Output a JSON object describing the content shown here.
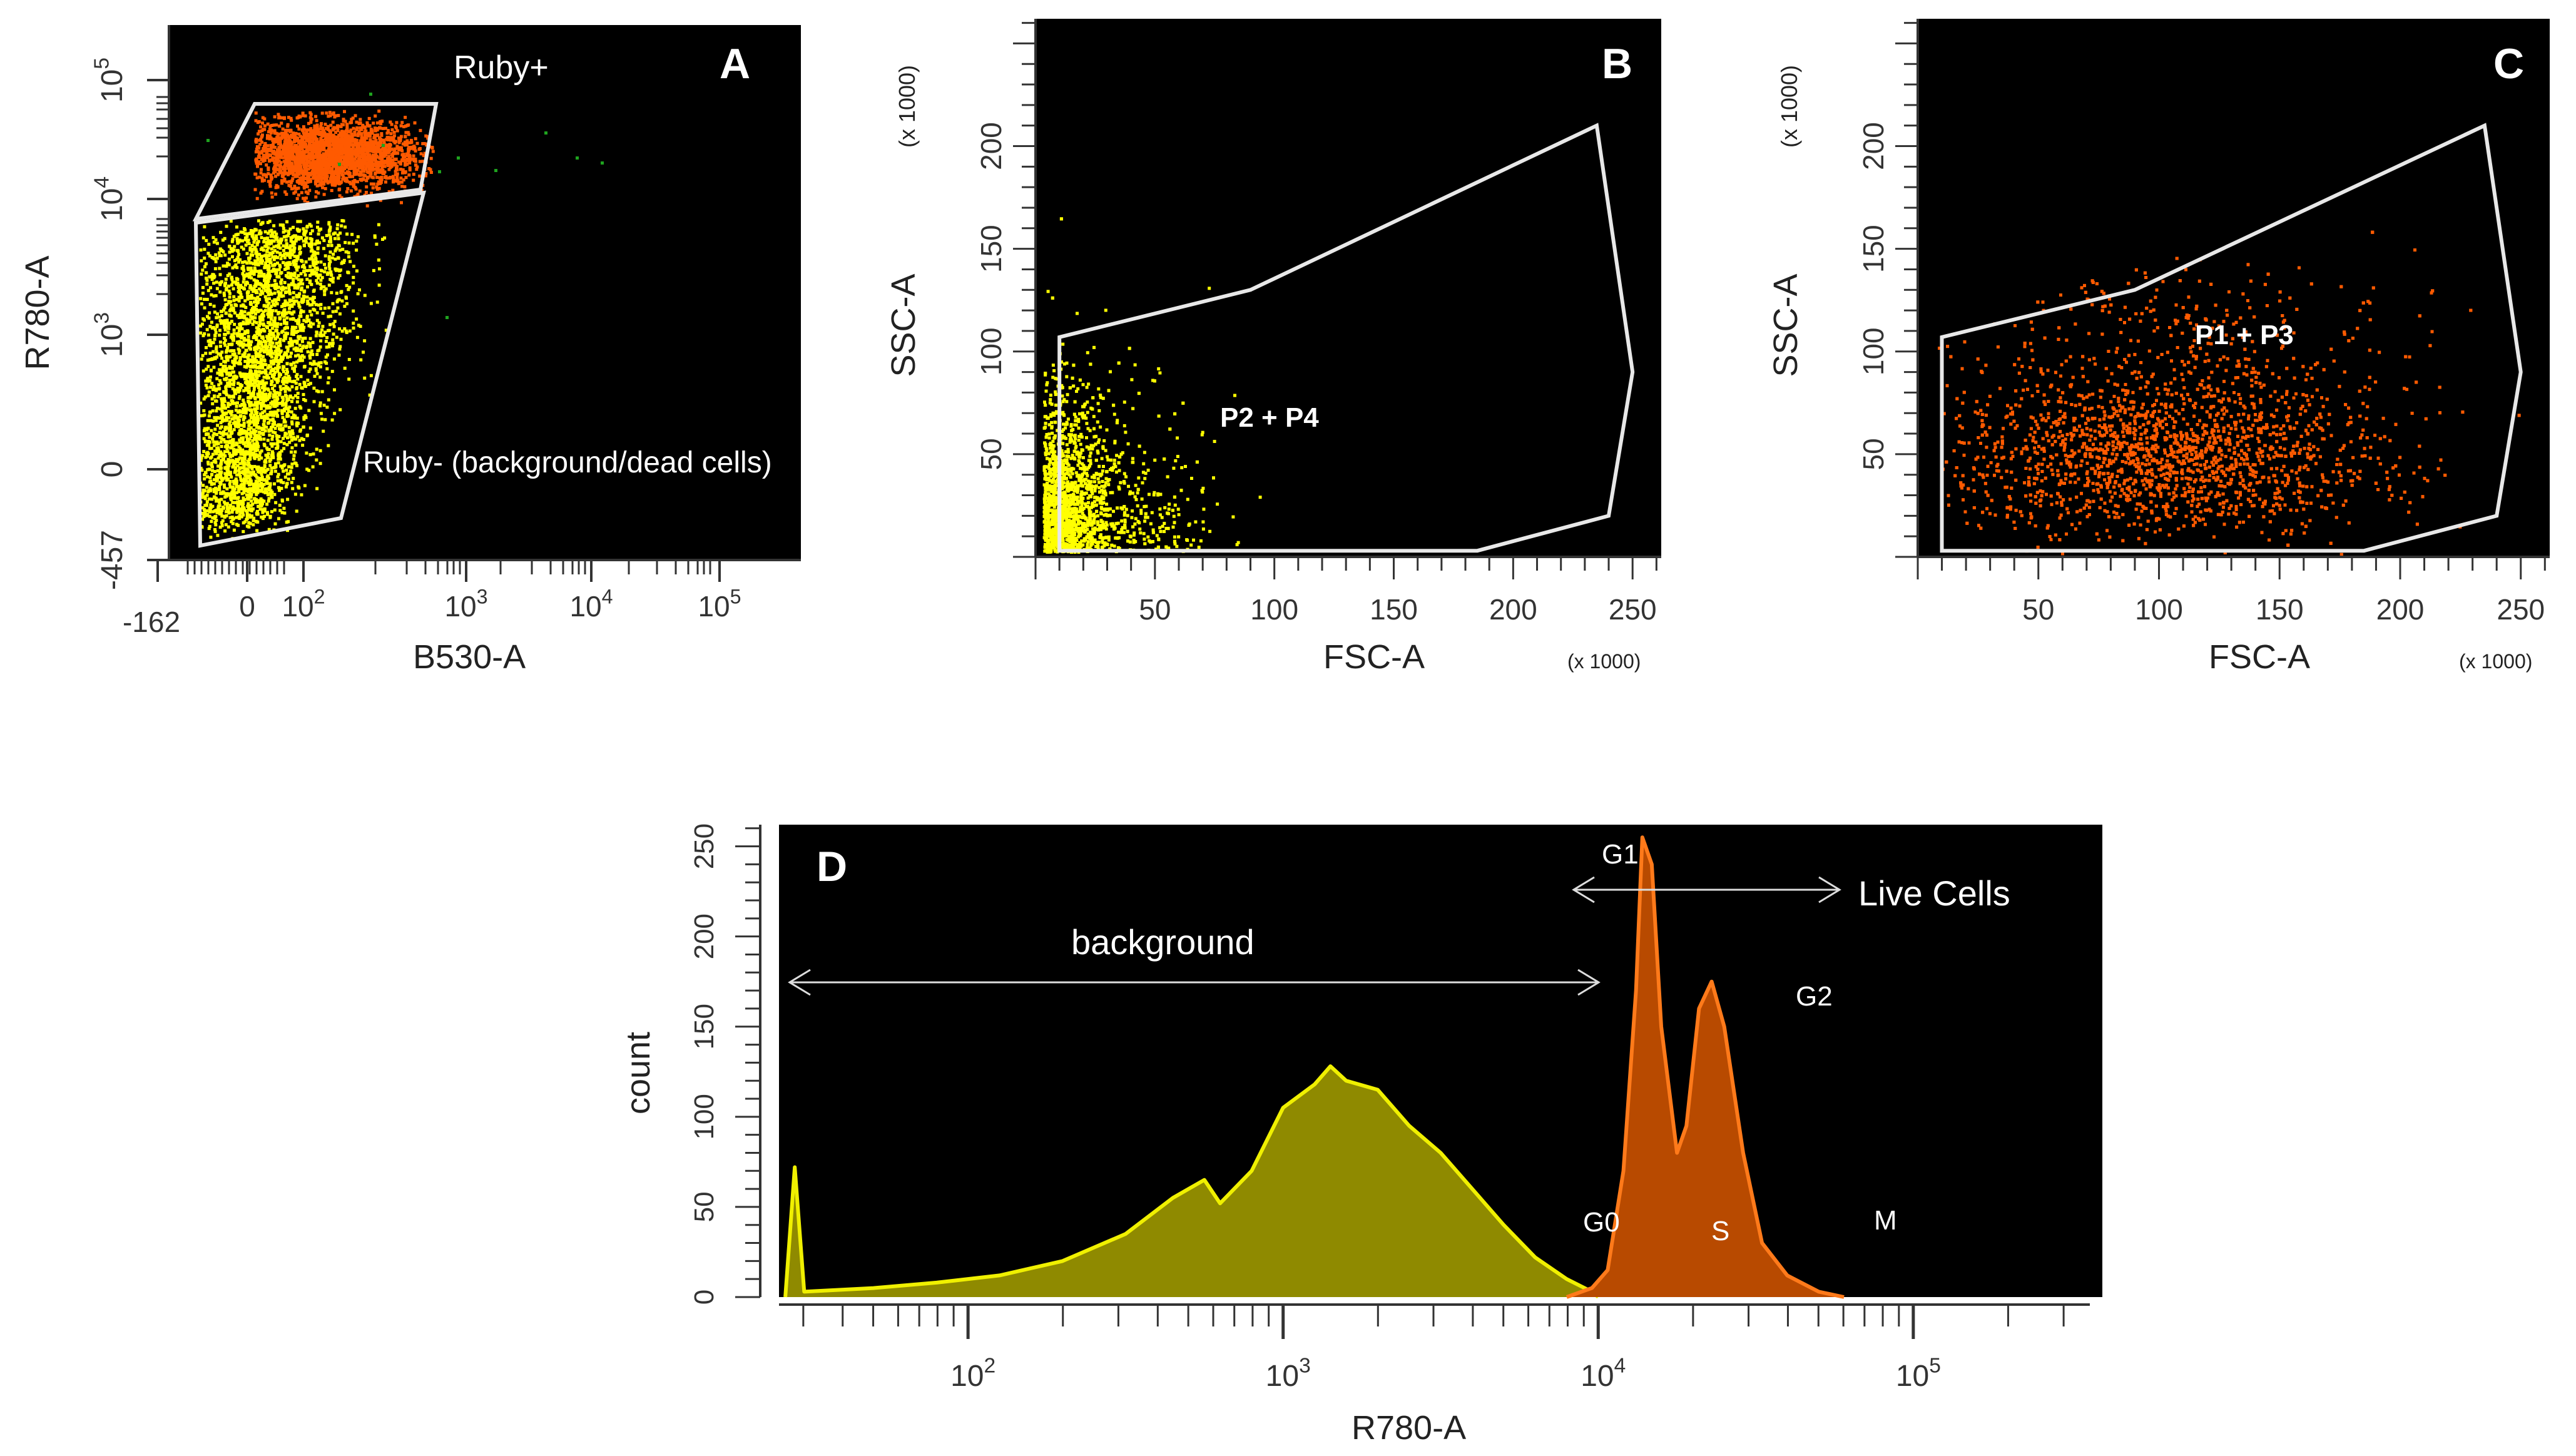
{
  "colors": {
    "plot_bg": "#000000",
    "gate": "#e8e8e8",
    "ruby_pos": "#ff5a00",
    "ruby_neg": "#ffff00",
    "stray": "#1fa31f",
    "hist_background_fill": "#8f8a00",
    "hist_background_line": "#f0f000",
    "hist_live_fill": "#b84a00",
    "hist_live_line": "#ff7a1a"
  },
  "chart_data": [
    {
      "panel": "A",
      "type": "scatter",
      "xlabel": "B530-A",
      "ylabel": "R780-A",
      "x_ticks": [
        {
          "base": "",
          "exp": "",
          "text": "-162"
        },
        {
          "base": "",
          "exp": "",
          "text": "0"
        },
        {
          "base": "10",
          "exp": "2",
          "text": ""
        },
        {
          "base": "10",
          "exp": "3",
          "text": ""
        },
        {
          "base": "10",
          "exp": "4",
          "text": ""
        },
        {
          "base": "10",
          "exp": "5",
          "text": ""
        }
      ],
      "y_ticks": [
        {
          "base": "",
          "exp": "",
          "text": "-457"
        },
        {
          "base": "",
          "exp": "",
          "text": "0"
        },
        {
          "base": "10",
          "exp": "3",
          "text": ""
        },
        {
          "base": "10",
          "exp": "4",
          "text": ""
        },
        {
          "base": "10",
          "exp": "5",
          "text": ""
        }
      ],
      "gates": [
        {
          "name": "Ruby+",
          "color_key": "ruby_pos"
        },
        {
          "name": "Ruby- (background/dead cells)",
          "color_key": "ruby_neg"
        }
      ],
      "populations": [
        {
          "name": "Ruby+",
          "color_key": "ruby_pos",
          "count": 2600
        },
        {
          "name": "Ruby-",
          "color_key": "ruby_neg",
          "count": 3800
        }
      ]
    },
    {
      "panel": "B",
      "type": "scatter",
      "xlabel": "FSC-A",
      "ylabel": "SSC-A",
      "x_unit": "(x 1000)",
      "y_unit": "(x 1000)",
      "xlim": [
        0,
        262
      ],
      "ylim": [
        0,
        262
      ],
      "x_ticks": [
        50,
        100,
        150,
        200,
        250
      ],
      "y_ticks": [
        50,
        100,
        150,
        200
      ],
      "gate_polygon": [
        [
          10,
          3
        ],
        [
          10,
          107
        ],
        [
          90,
          130
        ],
        [
          235,
          210
        ],
        [
          250,
          90
        ],
        [
          240,
          20
        ],
        [
          185,
          3
        ]
      ],
      "annotation": "P2 + P4",
      "population": {
        "name": "Ruby-",
        "color_key": "ruby_neg",
        "count": 2200
      }
    },
    {
      "panel": "C",
      "type": "scatter",
      "xlabel": "FSC-A",
      "ylabel": "SSC-A",
      "x_unit": "(x 1000)",
      "y_unit": "(x 1000)",
      "xlim": [
        0,
        262
      ],
      "ylim": [
        0,
        262
      ],
      "x_ticks": [
        50,
        100,
        150,
        200,
        250
      ],
      "y_ticks": [
        50,
        100,
        150,
        200
      ],
      "gate_polygon": [
        [
          10,
          3
        ],
        [
          10,
          107
        ],
        [
          90,
          130
        ],
        [
          235,
          210
        ],
        [
          250,
          90
        ],
        [
          240,
          20
        ],
        [
          185,
          3
        ]
      ],
      "annotation": "P1 + P3",
      "population": {
        "name": "Ruby+",
        "color_key": "ruby_pos",
        "count": 4200
      }
    },
    {
      "panel": "D",
      "type": "area",
      "xlabel": "R780-A",
      "ylabel": "count",
      "x_scale": "log10",
      "xlim_log10": [
        1.4,
        5.6
      ],
      "ylim": [
        0,
        262
      ],
      "y_ticks": [
        0,
        50,
        100,
        150,
        200,
        250
      ],
      "x_ticks": [
        {
          "base": "10",
          "exp": "2"
        },
        {
          "base": "10",
          "exp": "3"
        },
        {
          "base": "10",
          "exp": "4"
        },
        {
          "base": "10",
          "exp": "5"
        }
      ],
      "series": [
        {
          "name": "background",
          "fill_key": "hist_background_fill",
          "line_key": "hist_background_line",
          "points": [
            [
              1.42,
              0
            ],
            [
              1.45,
              72
            ],
            [
              1.48,
              3
            ],
            [
              1.7,
              5
            ],
            [
              1.9,
              8
            ],
            [
              2.1,
              12
            ],
            [
              2.3,
              20
            ],
            [
              2.5,
              35
            ],
            [
              2.65,
              55
            ],
            [
              2.75,
              65
            ],
            [
              2.8,
              52
            ],
            [
              2.9,
              70
            ],
            [
              3.0,
              105
            ],
            [
              3.1,
              118
            ],
            [
              3.15,
              128
            ],
            [
              3.2,
              120
            ],
            [
              3.3,
              115
            ],
            [
              3.4,
              95
            ],
            [
              3.5,
              80
            ],
            [
              3.6,
              60
            ],
            [
              3.7,
              40
            ],
            [
              3.8,
              22
            ],
            [
              3.9,
              10
            ],
            [
              3.98,
              3
            ],
            [
              4.0,
              0
            ]
          ]
        },
        {
          "name": "Live Cells",
          "fill_key": "hist_live_fill",
          "line_key": "hist_live_line",
          "points": [
            [
              3.9,
              0
            ],
            [
              3.98,
              5
            ],
            [
              4.03,
              15
            ],
            [
              4.08,
              70
            ],
            [
              4.12,
              170
            ],
            [
              4.14,
              255
            ],
            [
              4.17,
              240
            ],
            [
              4.2,
              150
            ],
            [
              4.25,
              80
            ],
            [
              4.28,
              95
            ],
            [
              4.32,
              160
            ],
            [
              4.36,
              175
            ],
            [
              4.4,
              150
            ],
            [
              4.46,
              80
            ],
            [
              4.52,
              30
            ],
            [
              4.6,
              12
            ],
            [
              4.7,
              3
            ],
            [
              4.78,
              0
            ]
          ]
        }
      ],
      "annotations": {
        "background": "background",
        "live_cells": "Live Cells",
        "phases": [
          "G0",
          "G1",
          "S",
          "G2",
          "M"
        ]
      }
    }
  ],
  "panel_labels": [
    "A",
    "B",
    "C",
    "D"
  ]
}
